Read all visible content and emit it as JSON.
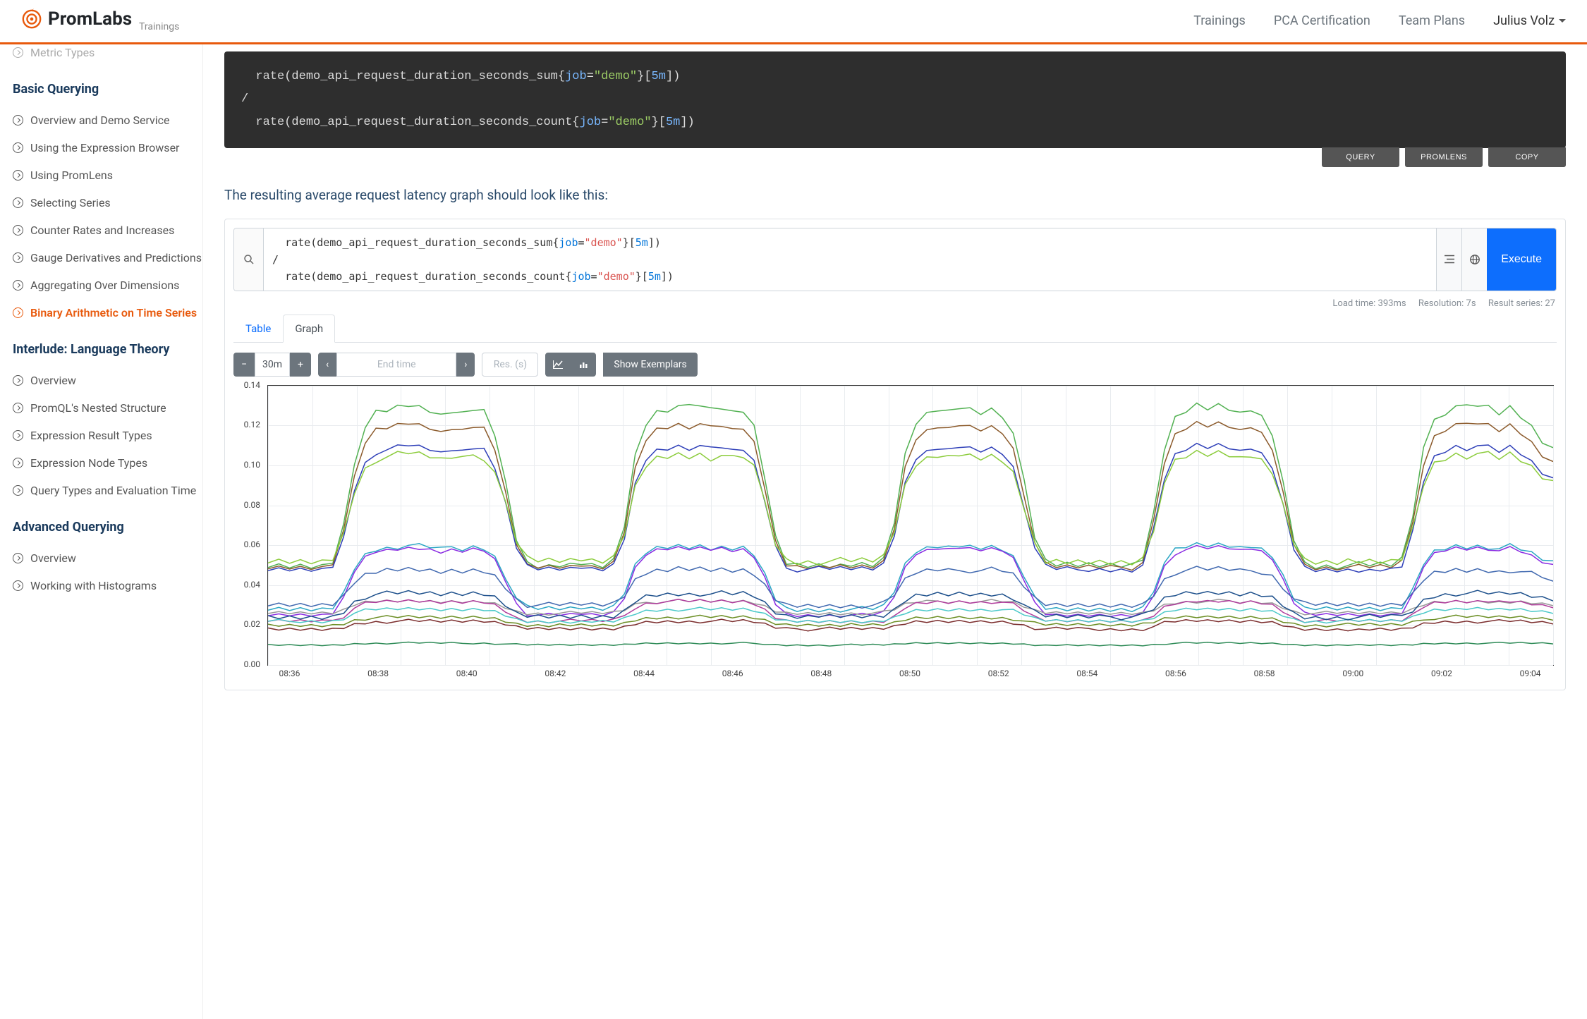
{
  "brand": {
    "name": "PromLabs",
    "sub": "Trainings",
    "accent": "#e8590c"
  },
  "nav": {
    "links": [
      "Trainings",
      "PCA Certification",
      "Team Plans"
    ],
    "user": "Julius Volz"
  },
  "sidebar": {
    "partial_top": "Metric Types",
    "sections": [
      {
        "title": "Basic Querying",
        "items": [
          {
            "label": "Overview and Demo Service",
            "active": false
          },
          {
            "label": "Using the Expression Browser",
            "active": false
          },
          {
            "label": "Using PromLens",
            "active": false
          },
          {
            "label": "Selecting Series",
            "active": false
          },
          {
            "label": "Counter Rates and Increases",
            "active": false
          },
          {
            "label": "Gauge Derivatives and Predictions",
            "active": false
          },
          {
            "label": "Aggregating Over Dimensions",
            "active": false
          },
          {
            "label": "Binary Arithmetic on Time Series",
            "active": true
          }
        ]
      },
      {
        "title": "Interlude: Language Theory",
        "items": [
          {
            "label": "Overview",
            "active": false
          },
          {
            "label": "PromQL's Nested Structure",
            "active": false
          },
          {
            "label": "Expression Result Types",
            "active": false
          },
          {
            "label": "Expression Node Types",
            "active": false
          },
          {
            "label": "Query Types and Evaluation Time",
            "active": false
          }
        ]
      },
      {
        "title": "Advanced Querying",
        "items": [
          {
            "label": "Overview",
            "active": false
          },
          {
            "label": "Working with Histograms",
            "active": false
          }
        ]
      }
    ]
  },
  "code": {
    "line1": {
      "fn": "rate",
      "metric": "demo_api_request_duration_seconds_sum",
      "label": "job",
      "val": "\"demo\"",
      "range": "5m"
    },
    "sep": "/",
    "line2": {
      "fn": "rate",
      "metric": "demo_api_request_duration_seconds_count",
      "label": "job",
      "val": "\"demo\"",
      "range": "5m"
    }
  },
  "buttons": {
    "query": "QUERY",
    "promlens": "PROMLENS",
    "copy": "COPY"
  },
  "body_text": "The resulting average request latency graph should look like this:",
  "graph": {
    "execute": "Execute",
    "meta": {
      "load": "Load time: 393ms",
      "res": "Resolution: 7s",
      "series": "Result series: 27"
    },
    "tabs": {
      "table": "Table",
      "graph": "Graph"
    },
    "controls": {
      "range": "30m",
      "end_time": "End time",
      "res": "Res. (s)",
      "exemplars": "Show Exemplars"
    },
    "y": {
      "min": 0.0,
      "max": 0.14,
      "step": 0.02,
      "ticks": [
        "0.00",
        "0.02",
        "0.04",
        "0.06",
        "0.08",
        "0.10",
        "0.12",
        "0.14"
      ]
    },
    "x": {
      "ticks": [
        "08:36",
        "08:38",
        "08:40",
        "08:42",
        "08:44",
        "08:46",
        "08:48",
        "08:50",
        "08:52",
        "08:54",
        "08:56",
        "08:58",
        "09:00",
        "09:02",
        "09:04"
      ]
    },
    "series_colors": {
      "green1": "#52b152",
      "brown": "#8b5a2b",
      "blue1": "#2e3fb8",
      "lgreen": "#8ccc3c",
      "teal": "#2aa6c4",
      "purple": "#8a2be2",
      "steel": "#4169b0",
      "grey": "#999999",
      "dkgreen": "#2e8b57",
      "magenta": "#b03c9c",
      "cyan": "#4bc9c9",
      "olive": "#6b8e23",
      "maroon": "#7b2d2d",
      "navy": "#1c4f8b"
    },
    "chart_bg": "#ffffff",
    "grid_color": "#e9ecef",
    "plot_border": "#333333",
    "shape": {
      "n": 120,
      "wave": [
        0.4,
        0.4,
        0.4,
        0.4,
        0.4,
        0.4,
        0.42,
        0.55,
        0.78,
        0.9,
        0.95,
        0.96,
        0.97,
        0.98,
        0.97,
        0.96,
        0.94,
        0.96,
        0.95,
        0.97,
        0.96,
        0.88,
        0.7,
        0.5,
        0.41,
        0.4,
        0.4,
        0.4,
        0.4,
        0.41,
        0.4,
        0.4,
        0.42,
        0.55,
        0.8,
        0.92,
        0.96,
        0.97,
        0.98,
        0.97,
        0.98,
        0.96,
        0.97,
        0.95,
        0.96,
        0.9,
        0.72,
        0.5,
        0.41,
        0.4,
        0.4,
        0.4,
        0.4,
        0.4,
        0.4,
        0.4,
        0.4,
        0.42,
        0.56,
        0.8,
        0.92,
        0.95,
        0.97,
        0.96,
        0.98,
        0.97,
        0.96,
        0.97,
        0.95,
        0.88,
        0.7,
        0.5,
        0.41,
        0.4,
        0.4,
        0.4,
        0.4,
        0.4,
        0.4,
        0.4,
        0.4,
        0.42,
        0.58,
        0.82,
        0.93,
        0.96,
        0.98,
        0.97,
        0.98,
        0.97,
        0.95,
        0.97,
        0.94,
        0.88,
        0.7,
        0.5,
        0.41,
        0.4,
        0.4,
        0.4,
        0.4,
        0.4,
        0.4,
        0.4,
        0.4,
        0.42,
        0.58,
        0.82,
        0.93,
        0.96,
        0.98,
        0.97,
        0.98,
        0.97,
        0.95,
        0.97,
        0.94,
        0.9,
        0.85,
        0.82
      ],
      "lines": [
        {
          "color": "green1",
          "base": 0.05,
          "amp": 0.08,
          "noise": 0.004
        },
        {
          "color": "brown",
          "base": 0.049,
          "amp": 0.072,
          "noise": 0.003
        },
        {
          "color": "blue1",
          "base": 0.048,
          "amp": 0.062,
          "noise": 0.003
        },
        {
          "color": "lgreen",
          "base": 0.052,
          "amp": 0.054,
          "noise": 0.004
        },
        {
          "color": "teal",
          "base": 0.028,
          "amp": 0.032,
          "noise": 0.003
        },
        {
          "color": "purple",
          "base": 0.025,
          "amp": 0.034,
          "noise": 0.002
        },
        {
          "color": "steel",
          "base": 0.03,
          "amp": 0.018,
          "noise": 0.003
        },
        {
          "color": "grey",
          "base": 0.026,
          "amp": 0.006,
          "noise": 0.002
        },
        {
          "color": "magenta",
          "base": 0.022,
          "amp": 0.01,
          "noise": 0.002
        },
        {
          "color": "cyan",
          "base": 0.022,
          "amp": 0.006,
          "noise": 0.002
        },
        {
          "color": "olive",
          "base": 0.02,
          "amp": 0.004,
          "noise": 0.002
        },
        {
          "color": "navy",
          "base": 0.024,
          "amp": 0.012,
          "noise": 0.003
        },
        {
          "color": "maroon",
          "base": 0.018,
          "amp": 0.004,
          "noise": 0.002
        },
        {
          "color": "dkgreen",
          "base": 0.01,
          "amp": 0.001,
          "noise": 0.001
        }
      ]
    }
  }
}
